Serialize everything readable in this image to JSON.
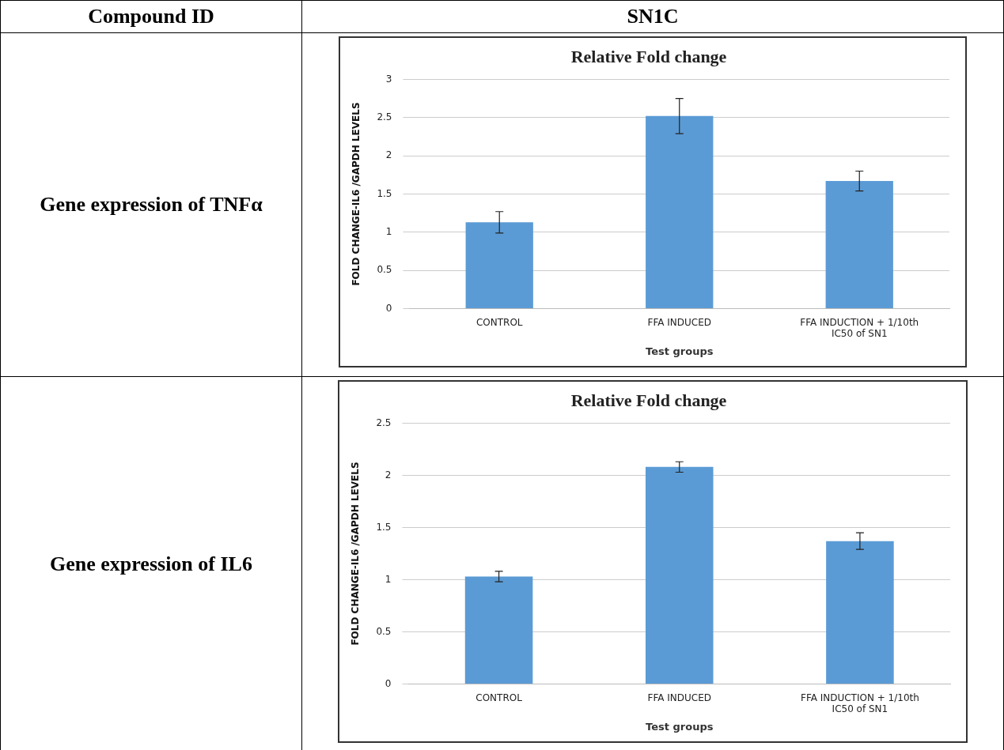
{
  "chart_data": [
    {
      "type": "bar",
      "title": "Relative Fold change",
      "xlabel": "Test groups",
      "ylabel": "FOLD CHANGE-IL6 /GAPDH LEVELS",
      "categories": [
        "CONTROL",
        "FFA INDUCED",
        "FFA INDUCTION + 1/10th IC50 of SN1"
      ],
      "values": [
        1.13,
        2.52,
        1.67
      ],
      "errors": [
        0.14,
        0.23,
        0.13
      ],
      "color": "#5b9bd5",
      "ylim": [
        0,
        3
      ],
      "yticks": [
        0,
        0.5,
        1,
        1.5,
        2,
        2.5,
        3
      ],
      "grid": "y",
      "legend": false,
      "annotations": [
        "Compound ID",
        "SN1C",
        "Gene expression of TNFα"
      ]
    },
    {
      "type": "bar",
      "title": "Relative Fold change",
      "xlabel": "Test groups",
      "ylabel": "FOLD CHANGE-IL6 /GAPDH LEVELS",
      "categories": [
        "CONTROL",
        "FFA INDUCED",
        "FFA INDUCTION + 1/10th IC50 of SN1"
      ],
      "values": [
        1.03,
        2.08,
        1.37
      ],
      "errors": [
        0.05,
        0.05,
        0.08
      ],
      "color": "#5b9bd5",
      "ylim": [
        0,
        2.5
      ],
      "yticks": [
        0,
        0.5,
        1,
        1.5,
        2,
        2.5
      ],
      "grid": "y",
      "legend": false,
      "annotations": [
        "Gene expression of IL6"
      ]
    }
  ]
}
